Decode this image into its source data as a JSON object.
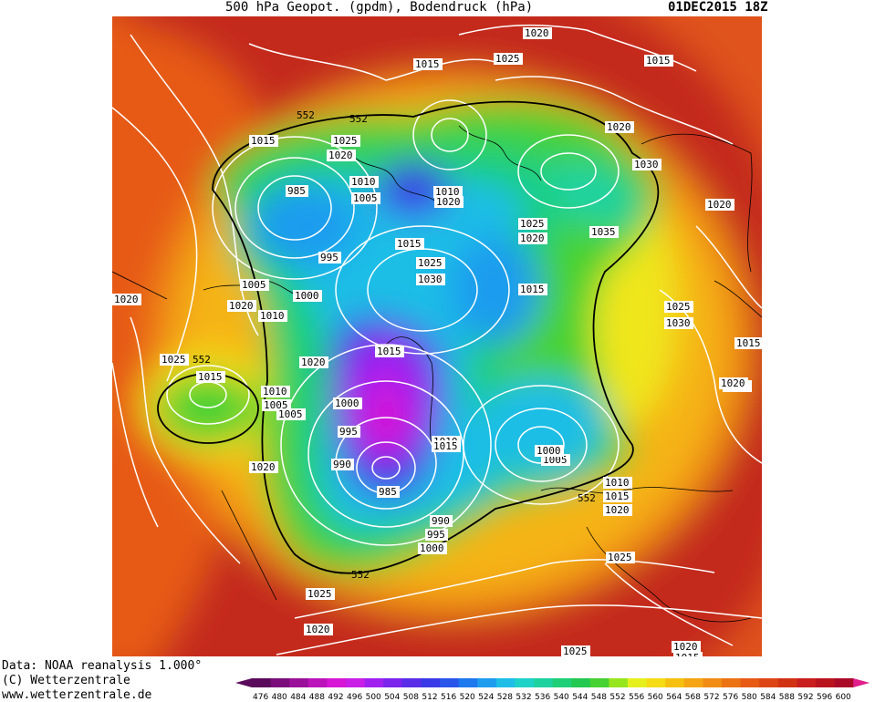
{
  "header": {
    "title": "500 hPa Geopot. (gpdm), Bodendruck (hPa)",
    "date": "01DEC2015 18Z"
  },
  "credits": {
    "line1": "Data: NOAA reanalysis 1.000°",
    "line2": "(C) Wetterzentrale",
    "line3": "www.wetterzentrale.de"
  },
  "colors": {
    "background_high": "#b81d1d",
    "isobar": "#ffffff",
    "coast": "#000000"
  },
  "legend": {
    "values": [
      "476",
      "480",
      "484",
      "488",
      "492",
      "496",
      "500",
      "504",
      "508",
      "512",
      "516",
      "520",
      "524",
      "528",
      "532",
      "536",
      "540",
      "544",
      "548",
      "552",
      "556",
      "560",
      "564",
      "568",
      "572",
      "576",
      "580",
      "584",
      "588",
      "592",
      "596",
      "600"
    ],
    "colors": [
      "#5a0a5a",
      "#7a0d7a",
      "#9a109a",
      "#bb14bb",
      "#d617d6",
      "#c81ee6",
      "#a020f0",
      "#7a24ec",
      "#5a2ee6",
      "#3a3ae6",
      "#2a55ea",
      "#1e78ee",
      "#1e9cee",
      "#1ebee6",
      "#1ed2c8",
      "#1ed2a0",
      "#1ecf78",
      "#22c850",
      "#46d232",
      "#96e61e",
      "#e6f01e",
      "#f5dc14",
      "#f5c00f",
      "#f5a514",
      "#f08c14",
      "#eb7314",
      "#e65a14",
      "#dc4614",
      "#d23214",
      "#c81e1e",
      "#b9141e",
      "#aa0a28"
    ]
  },
  "map": {
    "contour_labels_552": [
      "552",
      "552",
      "552",
      "552",
      "552"
    ],
    "pressure_labels": [
      "1020",
      "1025",
      "1015",
      "1015",
      "1020",
      "1025",
      "1020",
      "1015",
      "1030",
      "1020",
      "985",
      "1010",
      "1005",
      "1010",
      "1020",
      "1025",
      "1020",
      "1035",
      "1015",
      "1025",
      "1030",
      "995",
      "1000",
      "1005",
      "1020",
      "1010",
      "1015",
      "1020",
      "1025",
      "1030",
      "1015",
      "1020",
      "1015",
      "1020",
      "1025",
      "1015",
      "1010",
      "1005",
      "1000",
      "995",
      "990",
      "985",
      "1010",
      "1015",
      "1005",
      "1000",
      "1020",
      "990",
      "995",
      "1000",
      "1010",
      "1015",
      "1020",
      "1025",
      "1025",
      "1020",
      "1025",
      "1020",
      "1015",
      "1020",
      "1005"
    ]
  }
}
